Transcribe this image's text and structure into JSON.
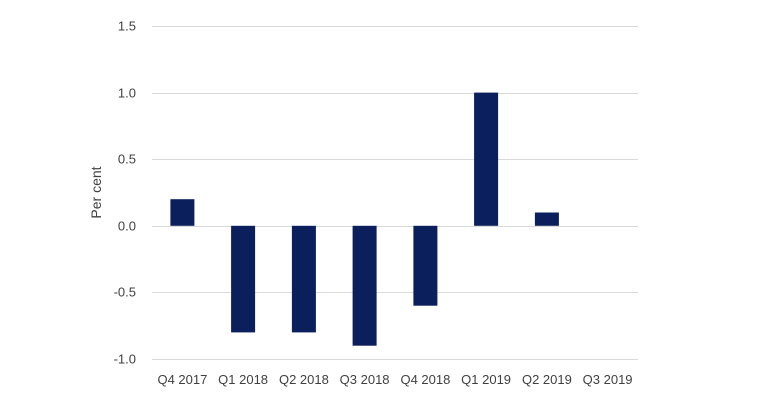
{
  "chart_data": {
    "type": "bar",
    "categories": [
      "Q4 2017",
      "Q1 2018",
      "Q2 2018",
      "Q3 2018",
      "Q4 2018",
      "Q1 2019",
      "Q2 2019",
      "Q3 2019"
    ],
    "values": [
      0.2,
      -0.8,
      -0.8,
      -0.9,
      -0.6,
      1.0,
      0.1,
      null
    ],
    "title": "",
    "xlabel": "",
    "ylabel": "Per cent",
    "ylim": [
      -1.0,
      1.5
    ],
    "yticks": [
      "1.5",
      "1.0",
      "0.5",
      "0.0",
      "-0.5",
      "-1.0"
    ],
    "ytick_values": [
      1.5,
      1.0,
      0.5,
      0.0,
      -0.5,
      -1.0
    ],
    "grid": true,
    "legend": "none",
    "bar_color": "#0b1f5c",
    "grid_color": "#d9d9d9",
    "text_color": "#404040"
  }
}
